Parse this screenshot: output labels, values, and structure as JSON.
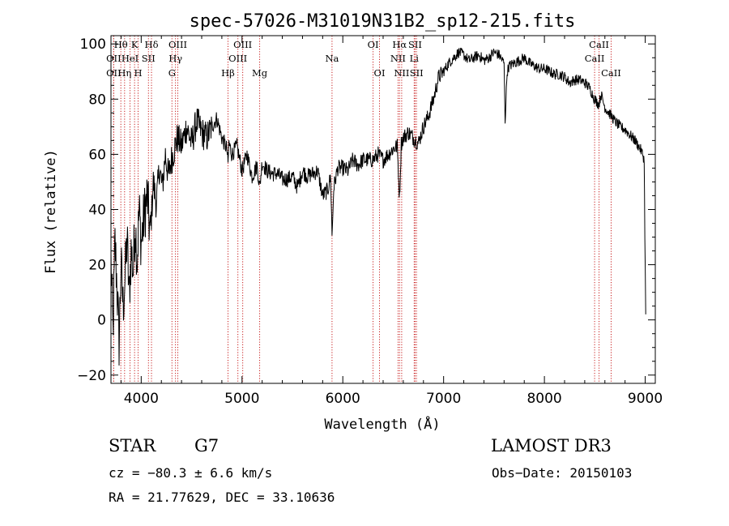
{
  "chart_data": {
    "type": "line",
    "title": "spec-57026-M31019N31B2_sp12-215.fits",
    "xlabel": "Wavelength (Å)",
    "ylabel": "Flux (relative)",
    "xlim": [
      3700,
      9100
    ],
    "ylim": [
      -23,
      103
    ],
    "xticks": [
      4000,
      5000,
      6000,
      7000,
      8000,
      9000
    ],
    "yticks": [
      -20,
      0,
      20,
      40,
      60,
      80,
      100
    ],
    "xtick_labels": [
      "4000",
      "5000",
      "6000",
      "7000",
      "8000",
      "9000"
    ],
    "ytick_labels": [
      "−20",
      "0",
      "20",
      "40",
      "60",
      "80",
      "100"
    ],
    "grid": false,
    "series": [
      {
        "name": "spectrum",
        "color": "#000000",
        "x": [
          3700,
          3720,
          3740,
          3760,
          3780,
          3800,
          3820,
          3840,
          3860,
          3880,
          3900,
          3920,
          3940,
          3960,
          3980,
          4000,
          4030,
          4060,
          4090,
          4120,
          4150,
          4180,
          4210,
          4240,
          4270,
          4300,
          4330,
          4360,
          4400,
          4450,
          4500,
          4550,
          4600,
          4650,
          4700,
          4750,
          4800,
          4850,
          4861,
          4870,
          4900,
          4950,
          5000,
          5050,
          5100,
          5150,
          5175,
          5200,
          5250,
          5300,
          5350,
          5400,
          5450,
          5500,
          5550,
          5600,
          5650,
          5700,
          5750,
          5800,
          5850,
          5880,
          5893,
          5910,
          5950,
          6000,
          6050,
          6100,
          6150,
          6200,
          6250,
          6300,
          6350,
          6400,
          6450,
          6500,
          6540,
          6563,
          6580,
          6600,
          6650,
          6700,
          6750,
          6800,
          6850,
          6900,
          6950,
          7000,
          7050,
          7100,
          7150,
          7200,
          7250,
          7300,
          7350,
          7400,
          7450,
          7500,
          7550,
          7600,
          7610,
          7630,
          7650,
          7700,
          7750,
          7800,
          7850,
          7900,
          7950,
          8000,
          8050,
          8100,
          8150,
          8200,
          8250,
          8300,
          8350,
          8400,
          8450,
          8498,
          8520,
          8542,
          8560,
          8600,
          8662,
          8700,
          8750,
          8800,
          8850,
          8900,
          8950,
          8975,
          8990,
          9000,
          9005
        ],
        "y": [
          22,
          -5,
          28,
          12,
          -8,
          20,
          5,
          15,
          30,
          8,
          25,
          18,
          35,
          22,
          40,
          28,
          38,
          45,
          30,
          50,
          42,
          55,
          48,
          60,
          52,
          58,
          62,
          66,
          63,
          70,
          64,
          72,
          68,
          66,
          70,
          73,
          66,
          62,
          56,
          64,
          60,
          63,
          54,
          60,
          52,
          56,
          48,
          57,
          54,
          53,
          53,
          51,
          51,
          52,
          48,
          54,
          52,
          53,
          54,
          45,
          47,
          52,
          30,
          48,
          55,
          55,
          54,
          58,
          56,
          58,
          58,
          58,
          60,
          58,
          60,
          62,
          63,
          44,
          64,
          66,
          68,
          66,
          64,
          70,
          74,
          80,
          88,
          90,
          93,
          95,
          97,
          96,
          94,
          95,
          96,
          94,
          95,
          97,
          96,
          93,
          72,
          90,
          92,
          93,
          94,
          95,
          93,
          92,
          91,
          91,
          90,
          89,
          89,
          88,
          86,
          87,
          87,
          86,
          84,
          80,
          79,
          78,
          82,
          77,
          74,
          72,
          70,
          69,
          67,
          65,
          62,
          60,
          58,
          18,
          2
        ]
      }
    ],
    "line_markers": [
      {
        "label": "Hθ",
        "x": 3798,
        "row": 1
      },
      {
        "label": "OII",
        "x": 3727,
        "row": 2
      },
      {
        "label": "OII",
        "x": 3727,
        "row": 3
      },
      {
        "label": "K",
        "x": 3934,
        "row": 1
      },
      {
        "label": "HeI",
        "x": 3889,
        "row": 2
      },
      {
        "label": "Hη",
        "x": 3835,
        "row": 3
      },
      {
        "label": "H",
        "x": 3969,
        "row": 3
      },
      {
        "label": "SII",
        "x": 4072,
        "row": 2
      },
      {
        "label": "Hδ",
        "x": 4102,
        "row": 1
      },
      {
        "label": "OIII",
        "x": 4363,
        "row": 1
      },
      {
        "label": "Hγ",
        "x": 4340,
        "row": 2
      },
      {
        "label": "G",
        "x": 4305,
        "row": 3
      },
      {
        "label": "Hβ",
        "x": 4861,
        "row": 3
      },
      {
        "label": "OIII",
        "x": 5007,
        "row": 1
      },
      {
        "label": "OIII",
        "x": 4959,
        "row": 2
      },
      {
        "label": "Mg",
        "x": 5175,
        "row": 3
      },
      {
        "label": "Na",
        "x": 5893,
        "row": 2
      },
      {
        "label": "OI",
        "x": 6300,
        "row": 1
      },
      {
        "label": "OI",
        "x": 6364,
        "row": 3
      },
      {
        "label": "Hα",
        "x": 6563,
        "row": 1
      },
      {
        "label": "NII",
        "x": 6548,
        "row": 2
      },
      {
        "label": "NII",
        "x": 6584,
        "row": 3
      },
      {
        "label": "SII",
        "x": 6717,
        "row": 1
      },
      {
        "label": "Li",
        "x": 6708,
        "row": 2
      },
      {
        "label": "SII",
        "x": 6731,
        "row": 3
      },
      {
        "label": "CaII",
        "x": 8542,
        "row": 1
      },
      {
        "label": "CaII",
        "x": 8498,
        "row": 2
      },
      {
        "label": "CaII",
        "x": 8662,
        "row": 3
      }
    ],
    "marker_color": "#c81e1e"
  },
  "info": {
    "object_class": "STAR",
    "subclass": "G7",
    "survey": "LAMOST DR3",
    "redshift": "cz = −80.3 ± 6.6 km/s",
    "obs_date": "Obs−Date: 20150103",
    "coords": "RA =  21.77629, DEC =  33.10636"
  }
}
